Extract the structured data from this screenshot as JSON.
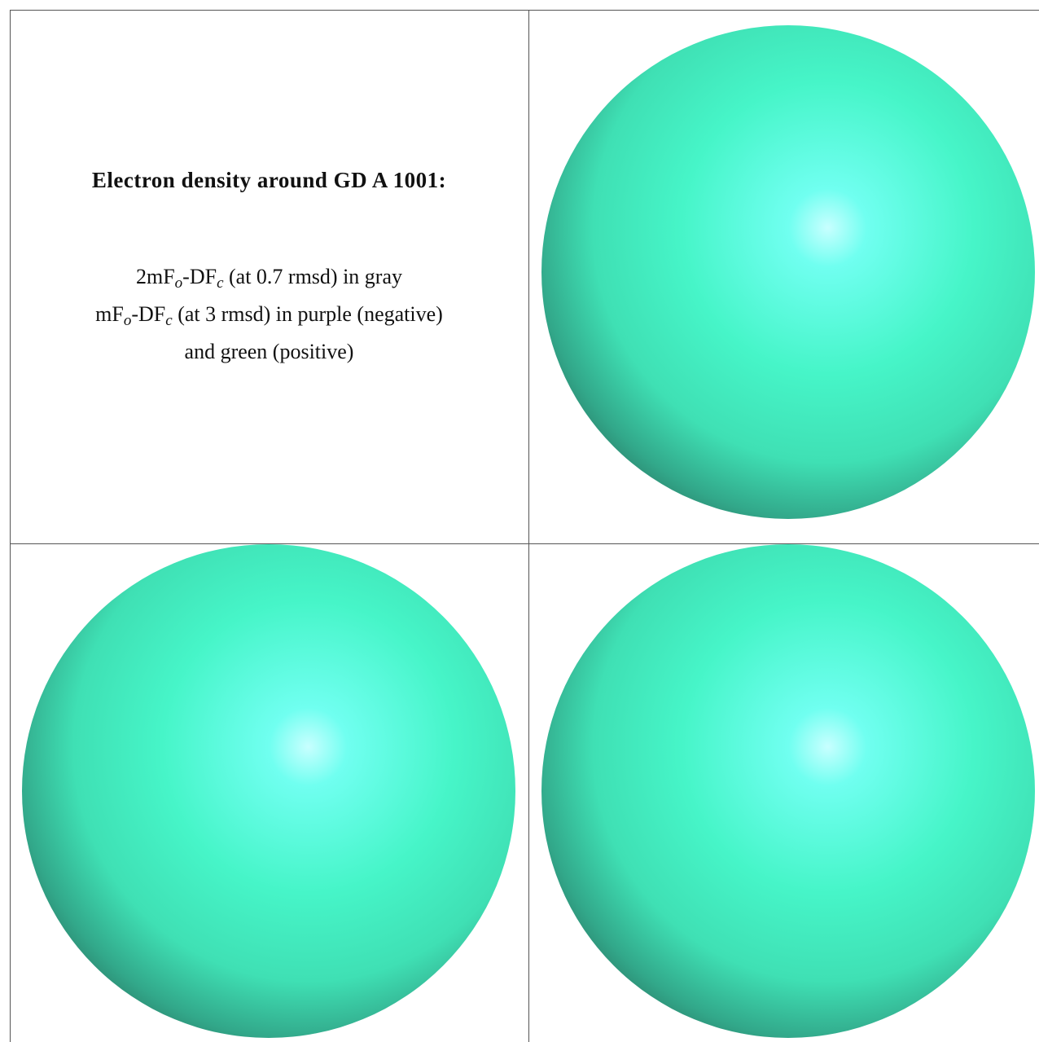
{
  "title": "Electron density around GD A 1001:",
  "lines": [
    [
      "2mF",
      "o",
      "-DF",
      "c",
      " (at 0.7 rmsd) in gray"
    ],
    [
      "mF",
      "o",
      "-DF",
      "c",
      " (at 3 rmsd) in purple (negative)"
    ],
    [
      "and green (positive)"
    ]
  ]
}
